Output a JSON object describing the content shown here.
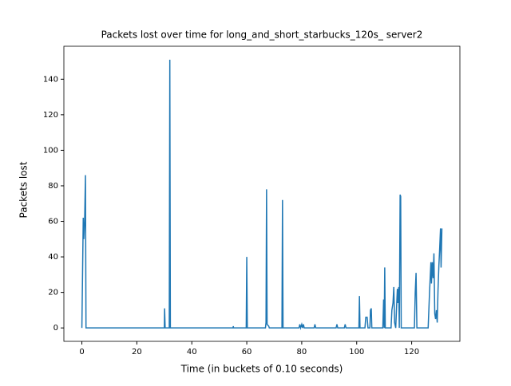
{
  "chart_data": {
    "type": "line",
    "title": "Packets lost over time for long_and_short_starbucks_120s_ server2",
    "x_label": "Time (in buckets of 0.10 seconds)",
    "y_label": "Packets lost",
    "x": [
      0,
      0.5,
      0.7,
      1,
      1.3,
      1.5,
      30,
      30.1,
      30.3,
      31.8,
      32,
      32.2,
      55,
      55.1,
      55.2,
      59.8,
      60,
      60.2,
      66.8,
      67,
      67.2,
      67.4,
      68,
      68.2,
      72.8,
      73,
      73.2,
      79,
      79.3,
      79.6,
      80,
      80.3,
      80.6,
      80.9,
      84.5,
      84.8,
      85.1,
      92.5,
      92.8,
      93.1,
      95.5,
      95.8,
      96.1,
      100.8,
      101,
      101.2,
      103,
      103.3,
      103.8,
      104.1,
      104.8,
      105,
      105.3,
      105.5,
      109.5,
      109.8,
      110,
      110.2,
      110.4,
      112.5,
      112.8,
      113.2,
      113.5,
      113.8,
      114.2,
      114.6,
      114.8,
      115,
      115.3,
      115.5,
      115.8,
      116,
      116.2,
      121,
      121.3,
      121.6,
      121.9,
      126,
      126.5,
      127,
      127.2,
      127.5,
      127.8,
      128.1,
      128.4,
      128.7,
      129,
      129.3,
      129.6,
      129.9,
      130.2,
      130.5,
      130.7,
      131
    ],
    "series": [
      {
        "name": "Packets lost",
        "color": "#1f77b4",
        "values": [
          0,
          62,
          50,
          60,
          86,
          0,
          0,
          11,
          0,
          0,
          151,
          0,
          0,
          1,
          0,
          0,
          40,
          0,
          0,
          3,
          78,
          2,
          1,
          0,
          0,
          72,
          0,
          0,
          2,
          0,
          2,
          0,
          2,
          0,
          0,
          2,
          0,
          0,
          2,
          0,
          0,
          2,
          0,
          0,
          18,
          0,
          0,
          6,
          6,
          0,
          0,
          10,
          11,
          0,
          0,
          16,
          0,
          34,
          0,
          0,
          10,
          14,
          23,
          3,
          0,
          15,
          22,
          14,
          23,
          0,
          75,
          74,
          0,
          0,
          20,
          31,
          0,
          0,
          20,
          37,
          25,
          37,
          28,
          42,
          8,
          5,
          10,
          3,
          22,
          35,
          45,
          56,
          34,
          56
        ]
      }
    ],
    "xlim": [
      -6.55,
      137.55
    ],
    "ylim": [
      -7.55,
      158.55
    ],
    "xticks": [
      0,
      20,
      40,
      60,
      80,
      100,
      120
    ],
    "yticks": [
      0,
      20,
      40,
      60,
      80,
      100,
      120,
      140
    ]
  }
}
